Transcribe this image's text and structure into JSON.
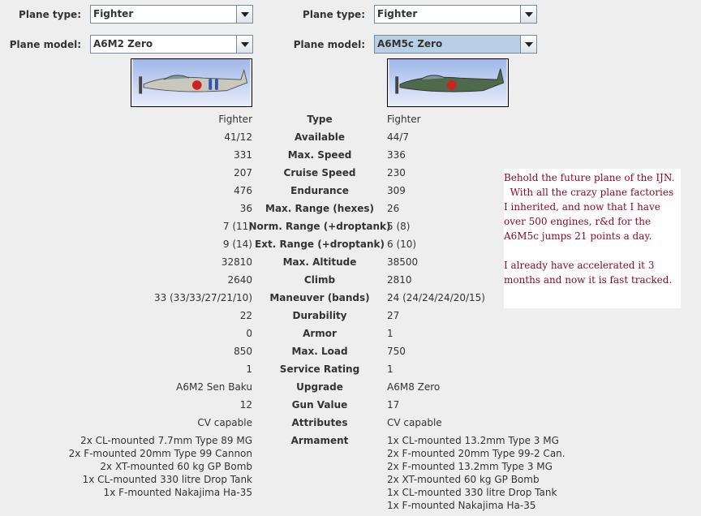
{
  "left": {
    "plane_type_label": "Plane type:",
    "plane_type": "Fighter",
    "plane_model_label": "Plane model:",
    "plane_model": "A6M2 Zero"
  },
  "right": {
    "plane_type_label": "Plane type:",
    "plane_type": "Fighter",
    "plane_model_label": "Plane model:",
    "plane_model": "A6M5c Zero"
  },
  "rows": [
    {
      "label": "Type",
      "left": "Fighter",
      "right": "Fighter"
    },
    {
      "label": "Available",
      "left": "41/12",
      "right": "44/7"
    },
    {
      "label": "Max. Speed",
      "left": "331",
      "right": "336"
    },
    {
      "label": "Cruise Speed",
      "left": "207",
      "right": "230"
    },
    {
      "label": "Endurance",
      "left": "476",
      "right": "309"
    },
    {
      "label": "Max. Range (hexes)",
      "left": "36",
      "right": "26"
    },
    {
      "label": "Norm. Range (+droptank)",
      "left": "7 (11)",
      "right": "5 (8)"
    },
    {
      "label": "Ext. Range (+droptank)",
      "left": "9 (14)",
      "right": "6 (10)"
    },
    {
      "label": "Max. Altitude",
      "left": "32810",
      "right": "38500"
    },
    {
      "label": "Climb",
      "left": "2640",
      "right": "2810"
    },
    {
      "label": "Maneuver (bands)",
      "left": "33 (33/33/27/21/10)",
      "right": "24 (24/24/24/20/15)"
    },
    {
      "label": "Durability",
      "left": "22",
      "right": "27"
    },
    {
      "label": "Armor",
      "left": "0",
      "right": "1"
    },
    {
      "label": "Max. Load",
      "left": "850",
      "right": "750"
    },
    {
      "label": "Service Rating",
      "left": "1",
      "right": "1"
    },
    {
      "label": "Upgrade",
      "left": "A6M2 Sen Baku",
      "right": "A6M8 Zero"
    },
    {
      "label": "Gun Value",
      "left": "12",
      "right": "17"
    },
    {
      "label": "Attributes",
      "left": "CV capable",
      "right": "CV capable"
    }
  ],
  "armament": {
    "label": "Armament",
    "left": [
      "2x CL-mounted 7.7mm Type 89 MG",
      "2x F-mounted 20mm Type 99 Cannon",
      "2x XT-mounted 60 kg GP Bomb",
      "1x CL-mounted 330 litre Drop Tank",
      "1x F-mounted Nakajima Ha-35"
    ],
    "right": [
      "1x CL-mounted 13.2mm Type 3 MG",
      "2x F-mounted 20mm Type 99-2 Can.",
      "2x F-mounted 13.2mm Type 3 MG",
      "2x XT-mounted 60 kg GP Bomb",
      "1x CL-mounted 330 litre Drop Tank",
      "1x F-mounted Nakajima Ha-35"
    ]
  },
  "note": {
    "paragraphs": [
      [
        "Behold the future plane of the IJN.",
        "  With all the crazy plane factories",
        "I inherited, and now that I have",
        "over 500 engines, r&d for the",
        "A6M5c jumps 21 points a day."
      ],
      [
        "I already have accelerated it 3",
        "months and now it is fast tracked."
      ]
    ]
  }
}
